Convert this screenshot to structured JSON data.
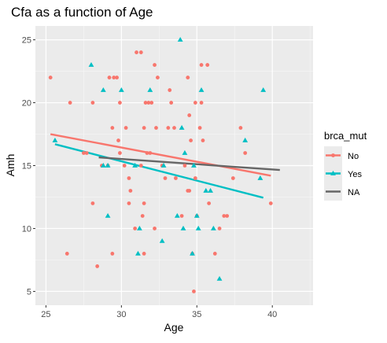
{
  "chart_data": {
    "type": "scatter",
    "title": "Cfa as a function of Age",
    "xlabel": "Age",
    "ylabel": "Amh",
    "xlim": [
      24.3,
      42.7
    ],
    "ylim": [
      3.9,
      26.1
    ],
    "x_ticks": [
      25,
      30,
      35,
      40
    ],
    "y_ticks": [
      5,
      10,
      15,
      20,
      25
    ],
    "grid": true,
    "legend_title": "brca_mut",
    "legend_position": "right",
    "series": [
      {
        "name": "No",
        "color": "#F8766D",
        "marker": "circle",
        "points": [
          [
            25.3,
            22
          ],
          [
            26.6,
            20
          ],
          [
            26.4,
            8
          ],
          [
            27.5,
            16
          ],
          [
            27.7,
            16
          ],
          [
            28.1,
            20
          ],
          [
            28.1,
            12
          ],
          [
            28.4,
            7
          ],
          [
            28.7,
            15
          ],
          [
            29.1,
            15
          ],
          [
            29.4,
            8
          ],
          [
            29.2,
            22
          ],
          [
            29.4,
            18
          ],
          [
            29.5,
            22
          ],
          [
            29.7,
            22
          ],
          [
            29.8,
            17
          ],
          [
            29.9,
            16
          ],
          [
            29.9,
            20
          ],
          [
            30.2,
            15
          ],
          [
            30.3,
            18
          ],
          [
            30.5,
            14
          ],
          [
            30.5,
            12
          ],
          [
            30.6,
            13
          ],
          [
            30.9,
            10
          ],
          [
            31.0,
            24
          ],
          [
            31.3,
            24
          ],
          [
            31.3,
            15
          ],
          [
            31.5,
            8
          ],
          [
            31.4,
            11
          ],
          [
            31.5,
            12
          ],
          [
            31.5,
            18
          ],
          [
            31.6,
            20
          ],
          [
            31.7,
            16
          ],
          [
            31.9,
            16
          ],
          [
            31.8,
            20
          ],
          [
            32.0,
            20
          ],
          [
            32.2,
            23
          ],
          [
            32.2,
            10
          ],
          [
            32.3,
            18
          ],
          [
            32.4,
            22
          ],
          [
            32.7,
            15
          ],
          [
            32.9,
            14
          ],
          [
            33.1,
            18
          ],
          [
            33.2,
            21
          ],
          [
            33.3,
            20
          ],
          [
            33.5,
            18
          ],
          [
            33.6,
            14
          ],
          [
            34.0,
            11
          ],
          [
            34.2,
            15
          ],
          [
            34.4,
            13
          ],
          [
            34.4,
            22
          ],
          [
            34.5,
            13
          ],
          [
            34.5,
            19
          ],
          [
            34.6,
            17
          ],
          [
            34.7,
            8
          ],
          [
            34.8,
            5
          ],
          [
            34.9,
            20
          ],
          [
            34.9,
            14
          ],
          [
            35.0,
            11
          ],
          [
            35.2,
            18
          ],
          [
            35.3,
            20
          ],
          [
            35.3,
            23
          ],
          [
            35.4,
            17
          ],
          [
            35.7,
            23
          ],
          [
            35.8,
            12
          ],
          [
            36.2,
            8
          ],
          [
            36.5,
            10
          ],
          [
            36.8,
            11
          ],
          [
            37.0,
            11
          ],
          [
            37.4,
            14
          ],
          [
            37.9,
            18
          ],
          [
            38.2,
            16
          ],
          [
            39.9,
            12
          ]
        ]
      },
      {
        "name": "Yes",
        "color": "#00BFC4",
        "marker": "triangle",
        "points": [
          [
            25.6,
            17
          ],
          [
            28.0,
            23
          ],
          [
            28.8,
            21
          ],
          [
            28.8,
            15
          ],
          [
            29.1,
            11
          ],
          [
            29.1,
            15
          ],
          [
            30.0,
            21
          ],
          [
            30.9,
            15
          ],
          [
            31.1,
            8
          ],
          [
            31.2,
            10
          ],
          [
            31.9,
            21
          ],
          [
            32.7,
            9
          ],
          [
            32.8,
            15
          ],
          [
            33.7,
            11
          ],
          [
            33.9,
            25
          ],
          [
            34.0,
            18
          ],
          [
            34.1,
            10
          ],
          [
            34.2,
            16
          ],
          [
            34.8,
            15
          ],
          [
            34.7,
            8
          ],
          [
            35.0,
            11
          ],
          [
            35.1,
            10
          ],
          [
            35.3,
            21
          ],
          [
            35.6,
            13
          ],
          [
            35.9,
            13
          ],
          [
            36.1,
            10
          ],
          [
            36.5,
            6
          ],
          [
            38.2,
            17
          ],
          [
            39.2,
            14
          ],
          [
            39.4,
            21
          ]
        ]
      }
    ],
    "trend_lines": [
      {
        "name": "No",
        "color": "#F8766D",
        "x": [
          25.3,
          39.9
        ],
        "y": [
          17.5,
          14.2
        ]
      },
      {
        "name": "Yes",
        "color": "#00BFC4",
        "x": [
          25.6,
          39.4
        ],
        "y": [
          16.7,
          12.45
        ]
      },
      {
        "name": "NA",
        "color": "#666666",
        "x": [
          28.5,
          40.5
        ],
        "y": [
          15.65,
          14.65
        ]
      }
    ]
  }
}
